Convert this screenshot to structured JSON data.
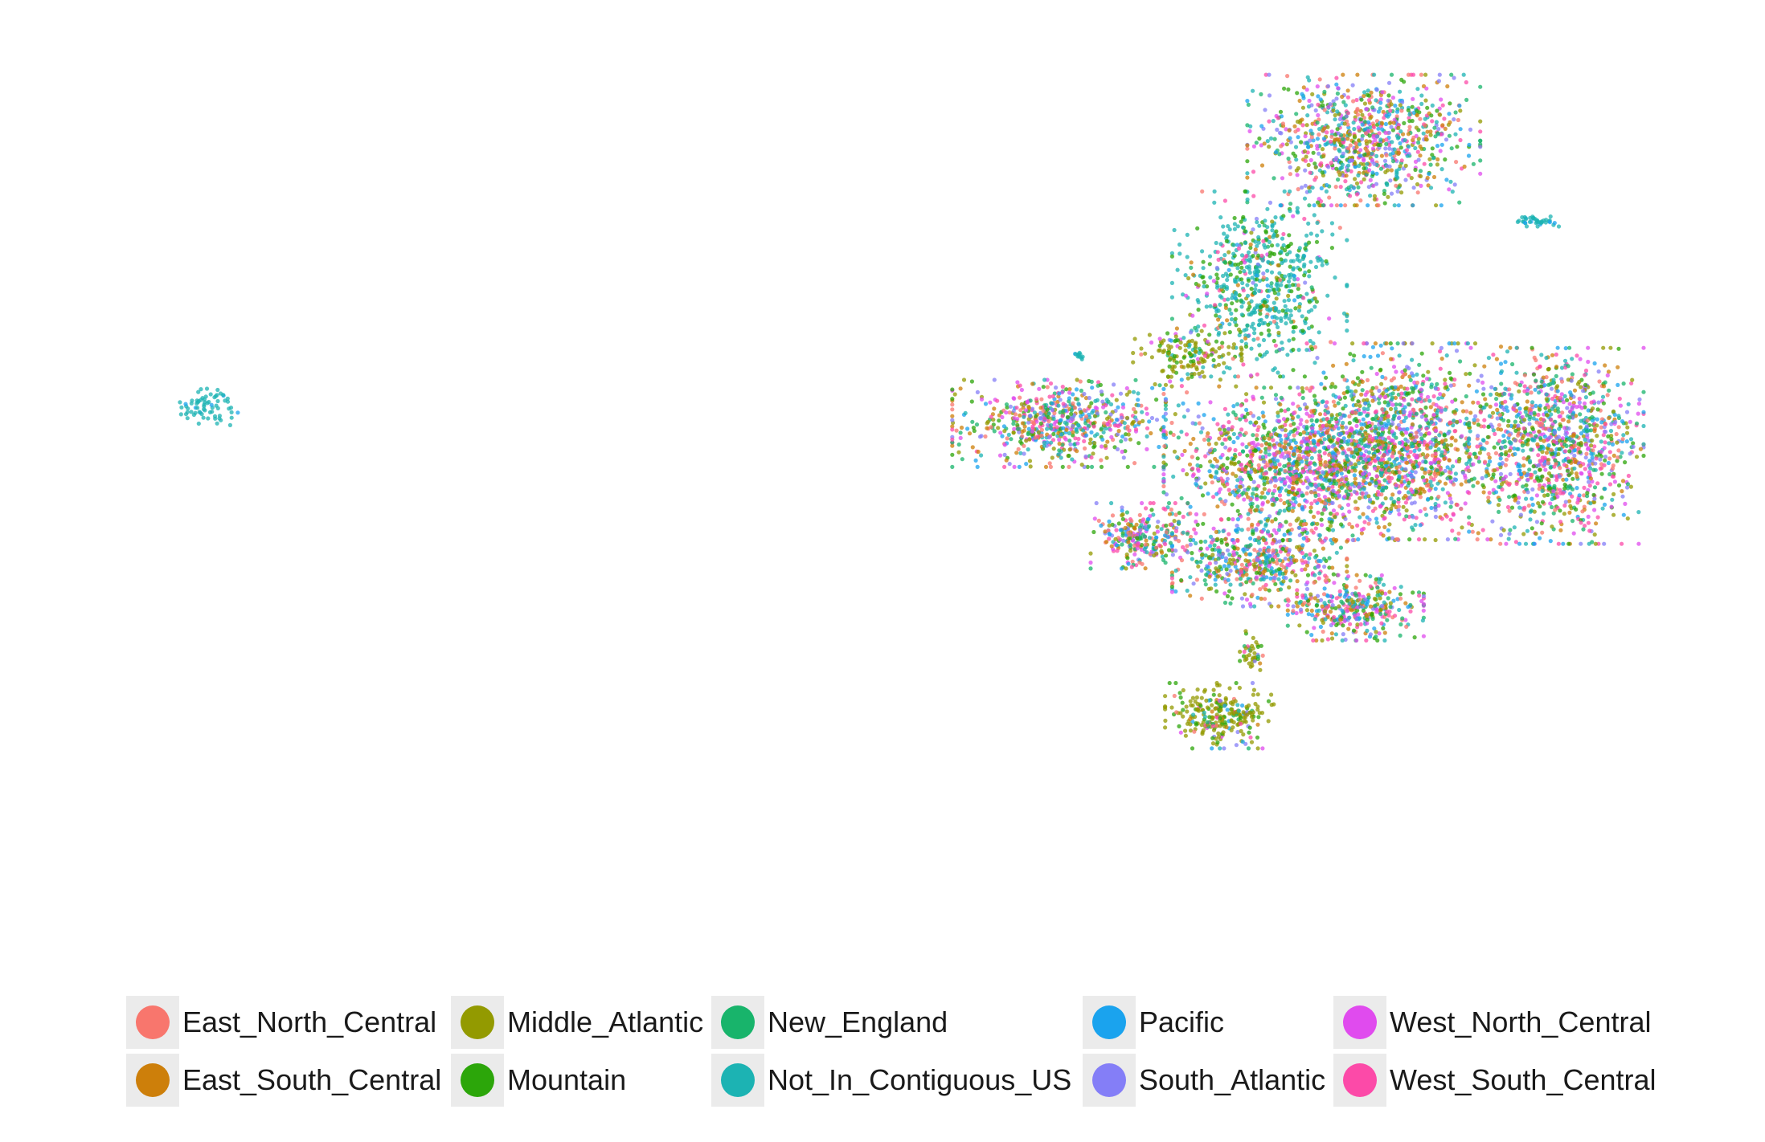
{
  "chart_data": {
    "type": "scatter",
    "title": "",
    "xlabel": "",
    "ylabel": "",
    "grid": false,
    "axes_visible": false,
    "legend_placement": "bottom",
    "series": [
      {
        "name": "East_North_Central",
        "color": "#F8766D"
      },
      {
        "name": "East_South_Central",
        "color": "#D39200"
      },
      {
        "name": "Middle_Atlantic",
        "color": "#93AA00"
      },
      {
        "name": "Mountain",
        "color": "#00BA38"
      },
      {
        "name": "New_England",
        "color": "#00C19F"
      },
      {
        "name": "Not_In_Contiguous_US",
        "color": "#00B9E3"
      },
      {
        "name": "Pacific",
        "color": "#619CFF"
      },
      {
        "name": "South_Atlantic",
        "color": "#DB72FB"
      },
      {
        "name": "West_North_Central",
        "color": "#FF61C3"
      },
      {
        "name": "West_South_Central",
        "color": "#FF4FA0"
      }
    ],
    "clusters": [
      {
        "x": 0.07,
        "y": 0.585,
        "rx": 0.015,
        "ry": 0.02,
        "n": 70,
        "mix": "not_contiguous"
      },
      {
        "x": 0.79,
        "y": 0.88,
        "rx": 0.06,
        "ry": 0.06,
        "n": 900,
        "mix": "all"
      },
      {
        "x": 0.725,
        "y": 0.72,
        "rx": 0.045,
        "ry": 0.085,
        "n": 650,
        "mix": "not_contiguous_heavy"
      },
      {
        "x": 0.68,
        "y": 0.64,
        "rx": 0.028,
        "ry": 0.028,
        "n": 160,
        "mix": "middle_atlantic_heavy"
      },
      {
        "x": 0.6,
        "y": 0.565,
        "rx": 0.055,
        "ry": 0.04,
        "n": 650,
        "mix": "all"
      },
      {
        "x": 0.75,
        "y": 0.52,
        "rx": 0.07,
        "ry": 0.07,
        "n": 1400,
        "mix": "all"
      },
      {
        "x": 0.815,
        "y": 0.545,
        "rx": 0.05,
        "ry": 0.09,
        "n": 1100,
        "mix": "all"
      },
      {
        "x": 0.91,
        "y": 0.54,
        "rx": 0.045,
        "ry": 0.09,
        "n": 1100,
        "mix": "all"
      },
      {
        "x": 0.725,
        "y": 0.41,
        "rx": 0.045,
        "ry": 0.04,
        "n": 500,
        "mix": "all"
      },
      {
        "x": 0.785,
        "y": 0.36,
        "rx": 0.035,
        "ry": 0.03,
        "n": 350,
        "mix": "all"
      },
      {
        "x": 0.65,
        "y": 0.44,
        "rx": 0.025,
        "ry": 0.03,
        "n": 250,
        "mix": "all"
      },
      {
        "x": 0.7,
        "y": 0.24,
        "rx": 0.028,
        "ry": 0.03,
        "n": 260,
        "mix": "middle_atlantic_heavy"
      },
      {
        "x": 0.72,
        "y": 0.31,
        "rx": 0.006,
        "ry": 0.02,
        "n": 40,
        "mix": "middle_atlantic_heavy"
      },
      {
        "x": 0.9,
        "y": 0.79,
        "rx": 0.012,
        "ry": 0.005,
        "n": 40,
        "mix": "not_contiguous"
      },
      {
        "x": 0.612,
        "y": 0.64,
        "rx": 0.003,
        "ry": 0.004,
        "n": 12,
        "mix": "not_contiguous"
      }
    ]
  },
  "legend": {
    "items": [
      {
        "label": "East_North_Central",
        "color": "#F8766D"
      },
      {
        "label": "East_South_Central",
        "color": "#CD7F0A"
      },
      {
        "label": "Middle_Atlantic",
        "color": "#939A00"
      },
      {
        "label": "Mountain",
        "color": "#2CA60A"
      },
      {
        "label": "New_England",
        "color": "#18B46B"
      },
      {
        "label": "Not_In_Contiguous_US",
        "color": "#1CB3B3"
      },
      {
        "label": "Pacific",
        "color": "#1AA3EE"
      },
      {
        "label": "South_Atlantic",
        "color": "#847EF7"
      },
      {
        "label": "West_North_Central",
        "color": "#E04BEE"
      },
      {
        "label": "West_South_Central",
        "color": "#FC4AA8"
      }
    ]
  }
}
